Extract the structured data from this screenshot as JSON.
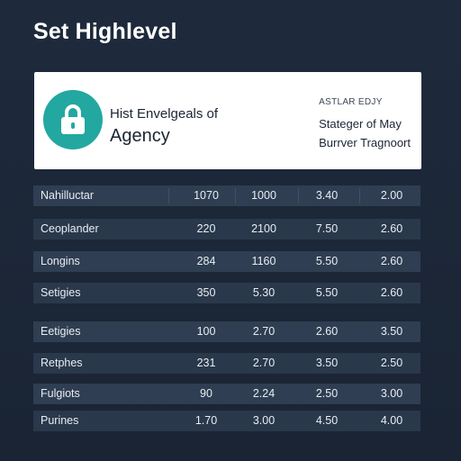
{
  "page": {
    "title": "Set Highlevel"
  },
  "card": {
    "icon": "lock-icon",
    "accent": "#22a8a0",
    "line1": "Hist Envelgeals of",
    "line2": "Agency",
    "caption": "ASTLAR EDJY",
    "right_line1": "Stateger of May",
    "right_line2": "Burrver Tragnoort"
  },
  "table": {
    "rows": [
      {
        "name": "Nahilluctar",
        "v1": "1070",
        "v2": "1000",
        "v3": "3.40",
        "v4": "2.00"
      },
      {
        "name": "Ceoplander",
        "v1": "220",
        "v2": "2100",
        "v3": "7.50",
        "v4": "2.60"
      },
      {
        "name": "Longins",
        "v1": "284",
        "v2": "1160",
        "v3": "5.50",
        "v4": "2.60"
      },
      {
        "name": "Setigies",
        "v1": "350",
        "v2": "5.30",
        "v3": "5.50",
        "v4": "2.60"
      },
      {
        "name": "Eetigies",
        "v1": "100",
        "v2": "2.70",
        "v3": "2.60",
        "v4": "3.50"
      },
      {
        "name": "Retphes",
        "v1": "231",
        "v2": "2.70",
        "v3": "3.50",
        "v4": "2.50"
      },
      {
        "name": "Fulgiots",
        "v1": "90",
        "v2": "2.24",
        "v3": "2.50",
        "v4": "3.00"
      },
      {
        "name": "Purines",
        "v1": "1.70",
        "v2": "3.00",
        "v3": "4.50",
        "v4": "4.00"
      }
    ]
  }
}
